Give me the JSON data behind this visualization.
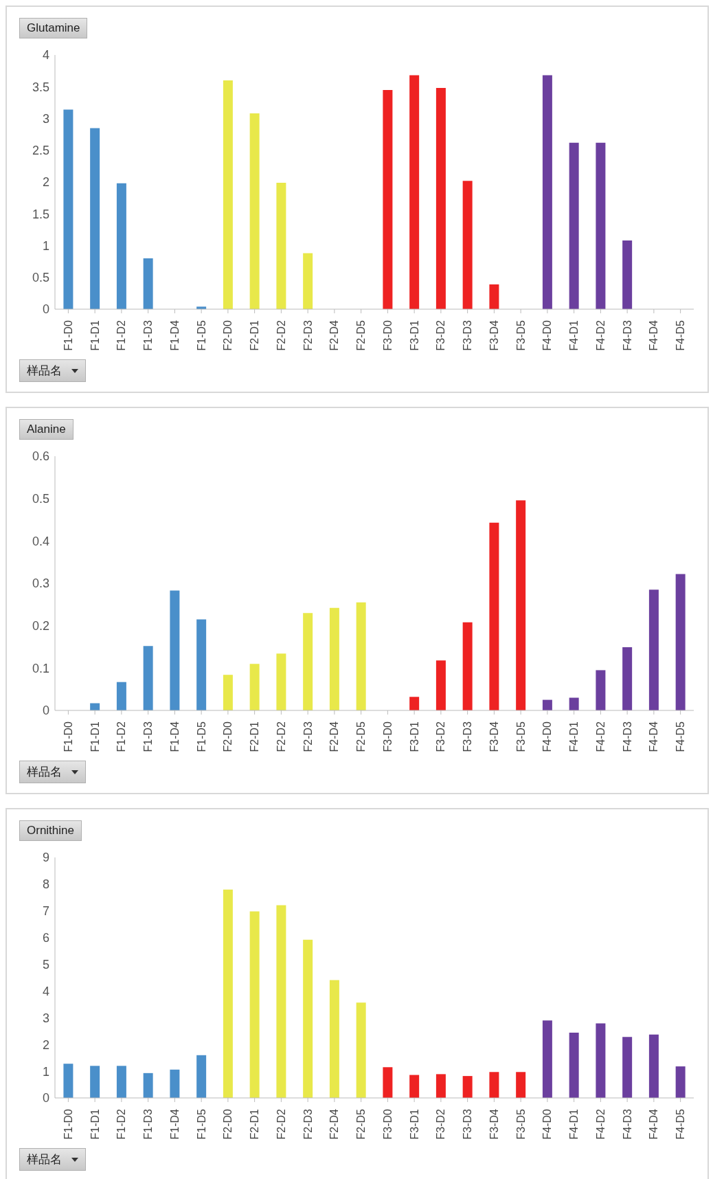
{
  "chart_data": [
    {
      "type": "bar",
      "title": "Glutamine",
      "xlabel": "样品名",
      "categories": [
        "F1-D0",
        "F1-D1",
        "F1-D2",
        "F1-D3",
        "F1-D4",
        "F1-D5",
        "F2-D0",
        "F2-D1",
        "F2-D2",
        "F2-D3",
        "F2-D4",
        "F2-D5",
        "F3-D0",
        "F3-D1",
        "F3-D2",
        "F3-D3",
        "F3-D4",
        "F3-D5",
        "F4-D0",
        "F4-D1",
        "F4-D2",
        "F4-D3",
        "F4-D4",
        "F4-D5"
      ],
      "values": [
        3.14,
        2.85,
        1.98,
        0.8,
        null,
        0.04,
        3.6,
        3.08,
        1.99,
        0.88,
        null,
        null,
        3.45,
        3.68,
        3.48,
        2.02,
        0.39,
        null,
        3.68,
        2.62,
        2.62,
        1.08,
        null,
        null
      ],
      "colors": [
        "#4a8fca",
        "#4a8fca",
        "#4a8fca",
        "#4a8fca",
        "#4a8fca",
        "#4a8fca",
        "#e8e84a",
        "#e8e84a",
        "#e8e84a",
        "#e8e84a",
        "#e8e84a",
        "#e8e84a",
        "#ee2222",
        "#ee2222",
        "#ee2222",
        "#ee2222",
        "#ee2222",
        "#ee2222",
        "#6b3f9e",
        "#6b3f9e",
        "#6b3f9e",
        "#6b3f9e",
        "#6b3f9e",
        "#6b3f9e"
      ],
      "ylim": [
        0,
        4
      ],
      "yticks": [
        0,
        0.5,
        1,
        1.5,
        2,
        2.5,
        3,
        3.5,
        4
      ],
      "grid": false,
      "legend": false
    },
    {
      "type": "bar",
      "title": "Alanine",
      "xlabel": "样品名",
      "categories": [
        "F1-D0",
        "F1-D1",
        "F1-D2",
        "F1-D3",
        "F1-D4",
        "F1-D5",
        "F2-D0",
        "F2-D1",
        "F2-D2",
        "F2-D3",
        "F2-D4",
        "F2-D5",
        "F3-D0",
        "F3-D1",
        "F3-D2",
        "F3-D3",
        "F3-D4",
        "F3-D5",
        "F4-D0",
        "F4-D1",
        "F4-D2",
        "F4-D3",
        "F4-D4",
        "F4-D5"
      ],
      "values": [
        null,
        0.017,
        0.067,
        0.152,
        0.283,
        0.215,
        0.084,
        0.11,
        0.134,
        0.23,
        0.242,
        0.255,
        null,
        0.032,
        0.118,
        0.208,
        0.443,
        0.496,
        0.025,
        0.03,
        0.095,
        0.149,
        0.285,
        0.322
      ],
      "colors": [
        "#4a8fca",
        "#4a8fca",
        "#4a8fca",
        "#4a8fca",
        "#4a8fca",
        "#4a8fca",
        "#e8e84a",
        "#e8e84a",
        "#e8e84a",
        "#e8e84a",
        "#e8e84a",
        "#e8e84a",
        "#ee2222",
        "#ee2222",
        "#ee2222",
        "#ee2222",
        "#ee2222",
        "#ee2222",
        "#6b3f9e",
        "#6b3f9e",
        "#6b3f9e",
        "#6b3f9e",
        "#6b3f9e",
        "#6b3f9e"
      ],
      "ylim": [
        0,
        0.6
      ],
      "yticks": [
        0,
        0.1,
        0.2,
        0.3,
        0.4,
        0.5,
        0.6
      ],
      "grid": false,
      "legend": false
    },
    {
      "type": "bar",
      "title": "Ornithine",
      "xlabel": "样品名",
      "categories": [
        "F1-D0",
        "F1-D1",
        "F1-D2",
        "F1-D3",
        "F1-D4",
        "F1-D5",
        "F2-D0",
        "F2-D1",
        "F2-D2",
        "F2-D3",
        "F2-D4",
        "F2-D5",
        "F3-D0",
        "F3-D1",
        "F3-D2",
        "F3-D3",
        "F3-D4",
        "F3-D5",
        "F4-D0",
        "F4-D1",
        "F4-D2",
        "F4-D3",
        "F4-D4",
        "F4-D5"
      ],
      "values": [
        1.28,
        1.2,
        1.2,
        0.93,
        1.06,
        1.6,
        7.8,
        6.98,
        7.21,
        5.92,
        4.41,
        3.57,
        1.15,
        0.86,
        0.89,
        0.82,
        0.97,
        0.97,
        2.9,
        2.44,
        2.79,
        2.28,
        2.37,
        1.18
      ],
      "colors": [
        "#4a8fca",
        "#4a8fca",
        "#4a8fca",
        "#4a8fca",
        "#4a8fca",
        "#4a8fca",
        "#e8e84a",
        "#e8e84a",
        "#e8e84a",
        "#e8e84a",
        "#e8e84a",
        "#e8e84a",
        "#ee2222",
        "#ee2222",
        "#ee2222",
        "#ee2222",
        "#ee2222",
        "#ee2222",
        "#6b3f9e",
        "#6b3f9e",
        "#6b3f9e",
        "#6b3f9e",
        "#6b3f9e",
        "#6b3f9e"
      ],
      "ylim": [
        0,
        9
      ],
      "yticks": [
        0,
        1,
        2,
        3,
        4,
        5,
        6,
        7,
        8,
        9
      ],
      "grid": false,
      "legend": false
    }
  ]
}
